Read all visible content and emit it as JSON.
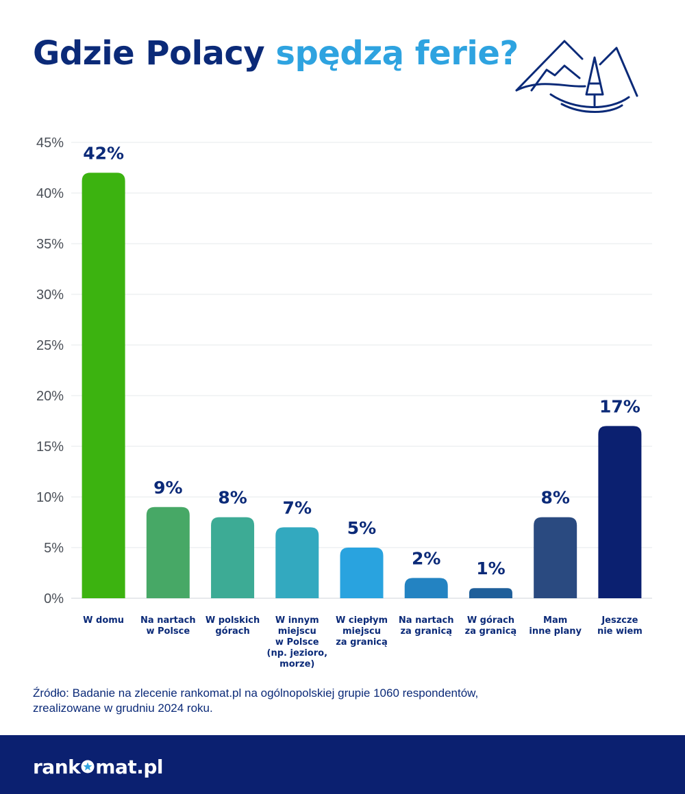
{
  "header": {
    "title_part1": "Gdzie Polacy",
    "title_part2": "spędzą ferie?",
    "icon": "mountain-tree-icon"
  },
  "chart_data": {
    "type": "bar",
    "title": "Gdzie Polacy spędzą ferie?",
    "categories": [
      [
        "W domu"
      ],
      [
        "Na nartach",
        "w Polsce"
      ],
      [
        "W polskich",
        "górach"
      ],
      [
        "W innym",
        "miejscu",
        "w Polsce",
        "(np. jezioro,",
        "morze)"
      ],
      [
        "W ciepłym",
        "miejscu",
        "za granicą"
      ],
      [
        "Na nartach",
        "za granicą"
      ],
      [
        "W górach",
        "za granicą"
      ],
      [
        "Mam",
        "inne plany"
      ],
      [
        "Jeszcze",
        "nie wiem"
      ]
    ],
    "values": [
      42,
      9,
      8,
      7,
      5,
      2,
      1,
      8,
      17
    ],
    "value_labels": [
      "42%",
      "9%",
      "8%",
      "7%",
      "5%",
      "2%",
      "1%",
      "8%",
      "17%"
    ],
    "bar_colors": [
      "#3cb310",
      "#47a866",
      "#3dab95",
      "#33a9bf",
      "#29a3df",
      "#2383c2",
      "#1f5f9a",
      "#2a4a80",
      "#0b2070"
    ],
    "ylim": [
      0,
      45
    ],
    "yticks": [
      0,
      5,
      10,
      15,
      20,
      25,
      30,
      35,
      40,
      45
    ],
    "ytick_labels": [
      "0%",
      "5%",
      "10%",
      "15%",
      "20%",
      "25%",
      "30%",
      "35%",
      "40%",
      "45%"
    ],
    "xlabel": "",
    "ylabel": "",
    "grid": true,
    "legend": "none"
  },
  "source": {
    "line1": "Źródło: Badanie na zlecenie rankomat.pl na ogólnopolskiej grupie 1060 respondentów,",
    "line2": "zrealizowane w grudniu 2024 roku."
  },
  "footer": {
    "logo_part1": "rank",
    "logo_part2": "mat.pl",
    "logo_icon": "star-in-circle-icon"
  },
  "colors": {
    "title_dark": "#0b2a78",
    "title_light": "#2ea3e0",
    "footer_bg": "#0b2070"
  }
}
